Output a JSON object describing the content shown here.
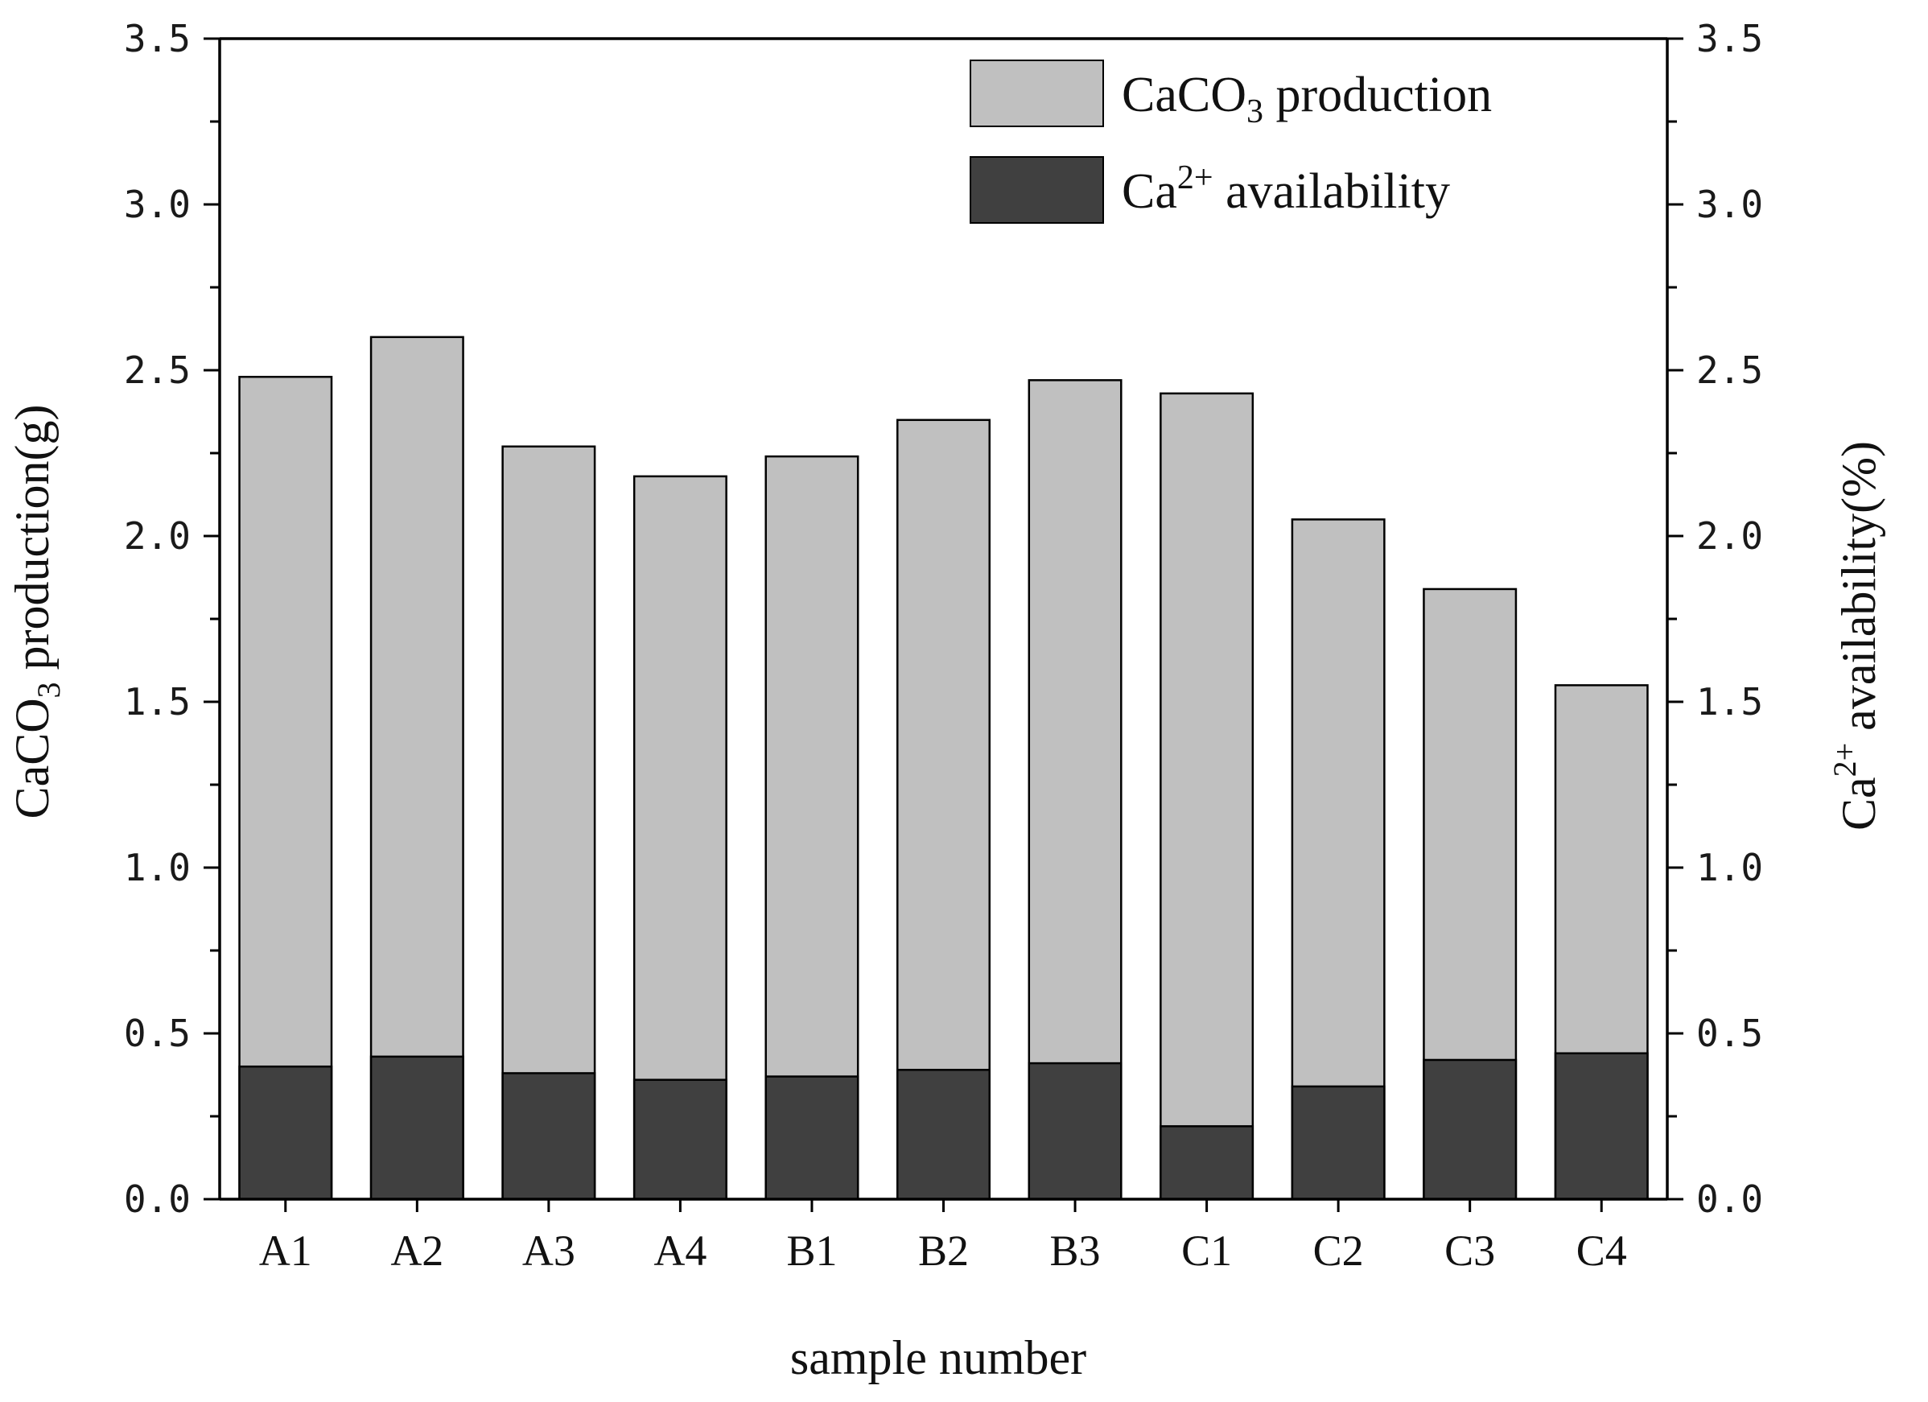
{
  "chart_data": {
    "type": "bar",
    "stacked": false,
    "overlay": true,
    "categories": [
      "A1",
      "A2",
      "A3",
      "A4",
      "B1",
      "B2",
      "B3",
      "C1",
      "C2",
      "C3",
      "C4"
    ],
    "series": [
      {
        "name": "CaCO3 production",
        "name_parts": {
          "base": "CaCO",
          "sub": "3",
          "rest": " production"
        },
        "axis": "left",
        "color": "#c0c0c0",
        "values": [
          2.48,
          2.6,
          2.27,
          2.18,
          2.24,
          2.35,
          2.47,
          2.43,
          2.05,
          1.84,
          1.55
        ]
      },
      {
        "name": "Ca2+ availability",
        "name_parts": {
          "base": "Ca",
          "sup": "2+",
          "rest": " availability"
        },
        "axis": "right",
        "color": "#404040",
        "values": [
          0.4,
          0.43,
          0.38,
          0.36,
          0.37,
          0.39,
          0.41,
          0.22,
          0.34,
          0.42,
          0.44
        ]
      }
    ],
    "xlabel": "sample number",
    "ylabel": "CaCO3 production(g)",
    "ylabel_parts": {
      "base": "CaCO",
      "sub": "3",
      "rest": " production(g)"
    },
    "y2label": "Ca2+ availability(%)",
    "y2label_parts": {
      "base": "Ca",
      "sup": "2+",
      "rest": " availability(%)"
    },
    "ylim": [
      0,
      3.5
    ],
    "y2lim": [
      0,
      3.5
    ],
    "yticks": [
      "0.0",
      "0.5",
      "1.0",
      "1.5",
      "2.0",
      "2.5",
      "3.0",
      "3.5"
    ],
    "y2ticks": [
      "0.0",
      "0.5",
      "1.0",
      "1.5",
      "2.0",
      "2.5",
      "3.0",
      "3.5"
    ],
    "legend_position": "top-right",
    "grid": false,
    "border_color": "#000000"
  }
}
